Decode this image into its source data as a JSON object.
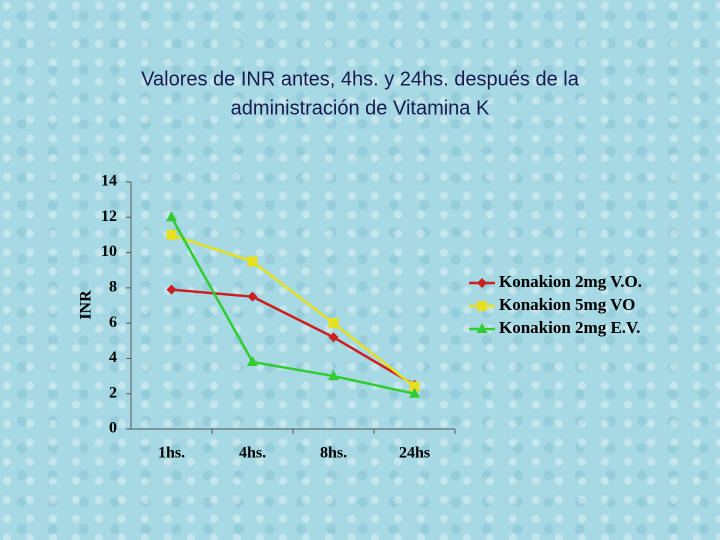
{
  "chart_data": {
    "type": "line",
    "title_lines": [
      "Valores de INR antes, 4hs. y 24hs. después de la",
      "administración de Vitamina K"
    ],
    "y_label": "INR",
    "categories": [
      "1hs.",
      "4hs.",
      "8hs.",
      "24hs"
    ],
    "series": [
      {
        "name": "Konakion 2mg V.O.",
        "color": "#cc2020",
        "marker": "diamond",
        "values": [
          7.9,
          7.5,
          5.2,
          2.5
        ]
      },
      {
        "name": "Konakion 5mg VO",
        "color": "#e6e020",
        "marker": "square",
        "values": [
          11,
          9.5,
          6,
          2.4
        ]
      },
      {
        "name": "Konakion 2mg E.V.",
        "color": "#30cc30",
        "marker": "triangle",
        "values": [
          12,
          3.8,
          3,
          2
        ]
      }
    ],
    "ylim": [
      0,
      14
    ],
    "yticks": [
      0,
      2,
      4,
      6,
      8,
      10,
      12,
      14
    ],
    "legend": "right"
  }
}
